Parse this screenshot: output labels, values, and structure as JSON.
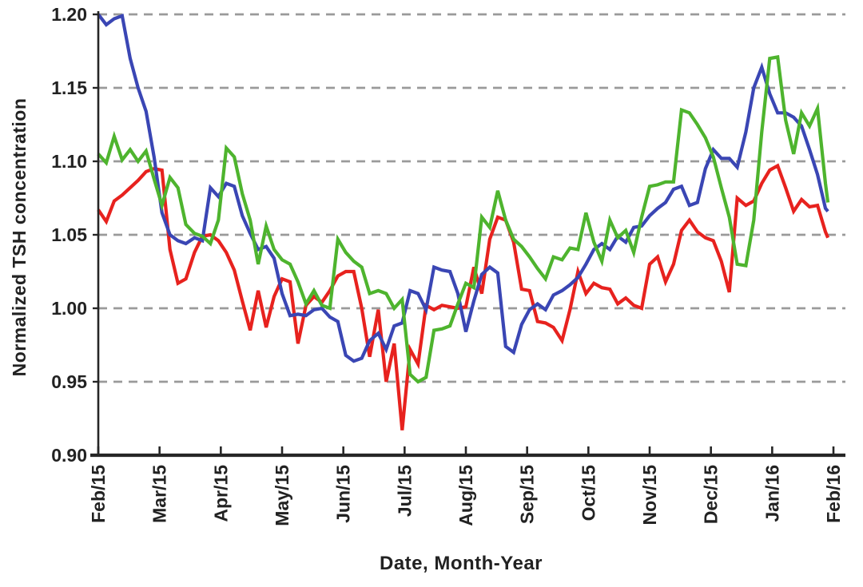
{
  "chart_data": {
    "type": "line",
    "title": "",
    "xlabel": "Date, Month-Year",
    "ylabel": "Normalized TSH concentration",
    "x_unit": "months since Feb/2015",
    "xlim": [
      0,
      12.2
    ],
    "ylim": [
      0.9,
      1.2
    ],
    "grid": "horizontal dashed",
    "legend": "none",
    "grid_color": "#9a9a9a",
    "axis_color": "#262626",
    "text_color": "#222222",
    "x_tick_labels": [
      "Feb/15",
      "Mar/15",
      "Apr/15",
      "May/15",
      "Jun/15",
      "Jul/15",
      "Aug/15",
      "Sep/15",
      "Oct/15",
      "Nov/15",
      "Dec/15",
      "Jan/16",
      "Feb/16"
    ],
    "x_tick_positions": [
      0,
      1,
      2,
      3,
      4,
      5,
      6,
      7,
      8,
      9,
      10,
      11,
      12
    ],
    "y_tick_labels": [
      "0.90",
      "0.95",
      "1.00",
      "1.05",
      "1.10",
      "1.15",
      "1.20"
    ],
    "y_tick_values": [
      0.9,
      0.95,
      1.0,
      1.05,
      1.1,
      1.15,
      1.2
    ],
    "x": [
      0.0,
      0.13,
      0.26,
      0.39,
      0.52,
      0.65,
      0.78,
      0.91,
      1.04,
      1.17,
      1.3,
      1.43,
      1.57,
      1.7,
      1.83,
      1.96,
      2.09,
      2.22,
      2.35,
      2.48,
      2.61,
      2.74,
      2.87,
      3.0,
      3.13,
      3.26,
      3.39,
      3.52,
      3.65,
      3.78,
      3.91,
      4.04,
      4.17,
      4.3,
      4.43,
      4.57,
      4.7,
      4.83,
      4.96,
      5.09,
      5.22,
      5.35,
      5.48,
      5.61,
      5.74,
      5.87,
      6.0,
      6.13,
      6.26,
      6.39,
      6.52,
      6.65,
      6.78,
      6.91,
      7.04,
      7.17,
      7.3,
      7.43,
      7.57,
      7.7,
      7.83,
      7.96,
      8.09,
      8.22,
      8.35,
      8.48,
      8.61,
      8.74,
      8.87,
      9.0,
      9.13,
      9.26,
      9.39,
      9.52,
      9.65,
      9.78,
      9.91,
      10.04,
      10.17,
      10.3,
      10.43,
      10.57,
      10.7,
      10.83,
      10.96,
      11.09,
      11.22,
      11.35,
      11.48,
      11.61,
      11.74,
      11.87,
      11.91
    ],
    "series": [
      {
        "name": "red-series",
        "color": "#e7221e",
        "values": [
          1.067,
          1.059,
          1.073,
          1.077,
          1.082,
          1.087,
          1.093,
          1.095,
          1.094,
          1.04,
          1.017,
          1.02,
          1.038,
          1.049,
          1.05,
          1.046,
          1.038,
          1.026,
          1.005,
          0.985,
          1.012,
          0.987,
          1.008,
          1.02,
          1.018,
          0.976,
          1.002,
          1.008,
          1.004,
          1.012,
          1.022,
          1.025,
          1.025,
          1.0,
          0.967,
          0.999,
          0.95,
          0.976,
          0.917,
          0.972,
          0.962,
          1.002,
          0.999,
          1.002,
          1.001,
          1.0,
          1.001,
          1.028,
          1.01,
          1.047,
          1.062,
          1.06,
          1.045,
          1.013,
          1.012,
          0.991,
          0.99,
          0.987,
          0.978,
          0.999,
          1.025,
          1.01,
          1.017,
          1.014,
          1.013,
          1.003,
          1.007,
          1.002,
          1.0,
          1.03,
          1.035,
          1.018,
          1.03,
          1.053,
          1.06,
          1.052,
          1.048,
          1.046,
          1.032,
          1.011,
          1.075,
          1.07,
          1.073,
          1.085,
          1.094,
          1.097,
          1.082,
          1.066,
          1.074,
          1.069,
          1.07,
          1.052,
          1.048
        ]
      },
      {
        "name": "blue-series",
        "color": "#3a46b4",
        "values": [
          1.2,
          1.193,
          1.197,
          1.199,
          1.17,
          1.15,
          1.134,
          1.103,
          1.065,
          1.05,
          1.046,
          1.044,
          1.048,
          1.046,
          1.082,
          1.076,
          1.085,
          1.083,
          1.063,
          1.051,
          1.04,
          1.042,
          1.034,
          1.01,
          0.995,
          0.996,
          0.995,
          0.999,
          1.0,
          0.994,
          0.991,
          0.968,
          0.964,
          0.966,
          0.978,
          0.983,
          0.972,
          0.988,
          0.99,
          1.012,
          1.01,
          0.999,
          1.028,
          1.026,
          1.025,
          1.01,
          0.984,
          1.005,
          1.023,
          1.028,
          1.024,
          0.974,
          0.97,
          0.989,
          0.999,
          1.003,
          0.999,
          1.009,
          1.012,
          1.016,
          1.021,
          1.03,
          1.04,
          1.044,
          1.04,
          1.049,
          1.045,
          1.055,
          1.056,
          1.063,
          1.068,
          1.072,
          1.081,
          1.083,
          1.07,
          1.072,
          1.095,
          1.108,
          1.102,
          1.102,
          1.096,
          1.12,
          1.15,
          1.164,
          1.146,
          1.133,
          1.133,
          1.13,
          1.124,
          1.108,
          1.091,
          1.068,
          1.066
        ]
      },
      {
        "name": "green-series",
        "color": "#4eb42e",
        "values": [
          1.105,
          1.099,
          1.117,
          1.101,
          1.108,
          1.1,
          1.107,
          1.088,
          1.07,
          1.089,
          1.082,
          1.057,
          1.051,
          1.049,
          1.044,
          1.06,
          1.109,
          1.103,
          1.078,
          1.06,
          1.03,
          1.056,
          1.04,
          1.033,
          1.03,
          1.018,
          1.003,
          1.012,
          1.002,
          1.0,
          1.047,
          1.038,
          1.032,
          1.028,
          1.01,
          1.012,
          1.01,
          1.0,
          1.006,
          0.955,
          0.95,
          0.953,
          0.985,
          0.986,
          0.988,
          1.003,
          1.017,
          1.014,
          1.062,
          1.055,
          1.08,
          1.06,
          1.047,
          1.042,
          1.035,
          1.027,
          1.02,
          1.035,
          1.033,
          1.041,
          1.04,
          1.065,
          1.045,
          1.032,
          1.06,
          1.048,
          1.053,
          1.038,
          1.062,
          1.083,
          1.084,
          1.086,
          1.086,
          1.135,
          1.133,
          1.125,
          1.116,
          1.103,
          1.082,
          1.062,
          1.03,
          1.029,
          1.06,
          1.12,
          1.17,
          1.171,
          1.128,
          1.105,
          1.133,
          1.124,
          1.136,
          1.085,
          1.072
        ]
      }
    ]
  }
}
